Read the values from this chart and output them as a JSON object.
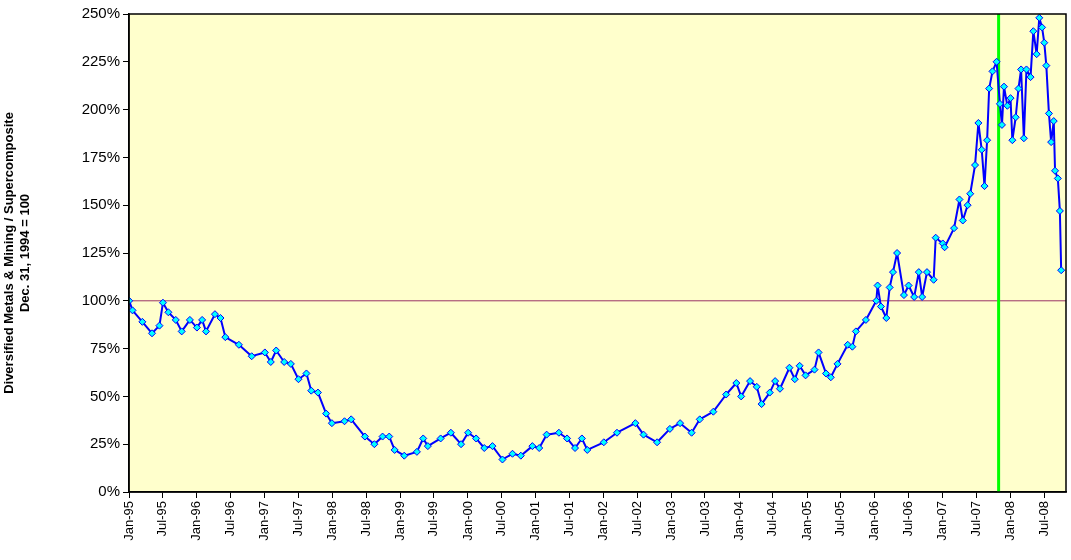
{
  "chart_data": {
    "type": "line",
    "ylabel": "Diversified Metals & Mining / Supercomposite\nDec. 31, 1994 = 100",
    "xlim": [
      "1995-01-01",
      "2008-10-27"
    ],
    "ylim": [
      0,
      250
    ],
    "yticks": [
      {
        "value": 0,
        "label": "0%"
      },
      {
        "value": 25,
        "label": "25%"
      },
      {
        "value": 50,
        "label": "50%"
      },
      {
        "value": 75,
        "label": "75%"
      },
      {
        "value": 100,
        "label": "100%"
      },
      {
        "value": 125,
        "label": "125%"
      },
      {
        "value": 150,
        "label": "150%"
      },
      {
        "value": 175,
        "label": "175%"
      },
      {
        "value": 200,
        "label": "200%"
      },
      {
        "value": 225,
        "label": "225%"
      },
      {
        "value": 250,
        "label": "250%"
      }
    ],
    "xticks": [
      {
        "value": "1995-01",
        "label": "Jan-95"
      },
      {
        "value": "1995-07",
        "label": "Jul-95"
      },
      {
        "value": "1996-01",
        "label": "Jan-96"
      },
      {
        "value": "1996-07",
        "label": "Jul-96"
      },
      {
        "value": "1997-01",
        "label": "Jan-97"
      },
      {
        "value": "1997-07",
        "label": "Jul-97"
      },
      {
        "value": "1998-01",
        "label": "Jan-98"
      },
      {
        "value": "1998-07",
        "label": "Jul-98"
      },
      {
        "value": "1999-01",
        "label": "Jan-99"
      },
      {
        "value": "1999-07",
        "label": "Jul-99"
      },
      {
        "value": "2000-01",
        "label": "Jan-00"
      },
      {
        "value": "2000-07",
        "label": "Jul-00"
      },
      {
        "value": "2001-01",
        "label": "Jan-01"
      },
      {
        "value": "2001-07",
        "label": "Jul-01"
      },
      {
        "value": "2002-01",
        "label": "Jan-02"
      },
      {
        "value": "2002-07",
        "label": "Jul-02"
      },
      {
        "value": "2003-01",
        "label": "Jan-03"
      },
      {
        "value": "2003-07",
        "label": "Jul-03"
      },
      {
        "value": "2004-01",
        "label": "Jan-04"
      },
      {
        "value": "2004-07",
        "label": "Jul-04"
      },
      {
        "value": "2005-01",
        "label": "Jan-05"
      },
      {
        "value": "2005-07",
        "label": "Jul-05"
      },
      {
        "value": "2006-01",
        "label": "Jan-06"
      },
      {
        "value": "2006-07",
        "label": "Jul-06"
      },
      {
        "value": "2007-01",
        "label": "Jan-07"
      },
      {
        "value": "2007-07",
        "label": "Jul-07"
      },
      {
        "value": "2008-01",
        "label": "Jan-08"
      },
      {
        "value": "2008-07",
        "label": "Jul-08"
      }
    ],
    "grid": false,
    "legend": false,
    "marker": "diamond",
    "line_style": "solid",
    "ref_lines": [
      {
        "axis": "y",
        "value": 100,
        "color": "#993366"
      },
      {
        "axis": "x",
        "value": "2007-10-30",
        "color": "#00ff00"
      }
    ],
    "series": [
      {
        "color": "#0000ff",
        "x": [
          "1995-01-02",
          "1995-01-20",
          "1995-03-14",
          "1995-05-05",
          "1995-06-14",
          "1995-07-03",
          "1995-08-01",
          "1995-09-10",
          "1995-10-12",
          "1995-11-25",
          "1996-01-02",
          "1996-01-30",
          "1996-02-20",
          "1996-04-08",
          "1996-05-08",
          "1996-06-03",
          "1996-08-15",
          "1996-10-23",
          "1997-01-02",
          "1997-02-03",
          "1997-03-04",
          "1997-04-16",
          "1997-05-22",
          "1997-07-02",
          "1997-08-14",
          "1997-09-09",
          "1997-10-15",
          "1997-11-28",
          "1997-12-29",
          "1998-03-07",
          "1998-04-12",
          "1998-06-25",
          "1998-08-15",
          "1998-09-28",
          "1998-11-03",
          "1998-12-02",
          "1999-01-23",
          "1999-04-01",
          "1999-05-05",
          "1999-05-30",
          "1999-08-07",
          "1999-10-01",
          "1999-11-25",
          "2000-01-02",
          "2000-02-14",
          "2000-03-29",
          "2000-05-12",
          "2000-07-05",
          "2000-08-28",
          "2000-10-12",
          "2000-12-13",
          "2001-01-19",
          "2001-02-28",
          "2001-05-05",
          "2001-06-18",
          "2001-07-31",
          "2001-09-06",
          "2001-10-05",
          "2002-01-02",
          "2002-03-14",
          "2002-06-21",
          "2002-08-04",
          "2002-10-16",
          "2002-12-24",
          "2003-02-17",
          "2003-04-20",
          "2003-06-03",
          "2003-08-15",
          "2003-10-23",
          "2003-12-17",
          "2004-01-12",
          "2004-02-29",
          "2004-04-05",
          "2004-05-01",
          "2004-06-14",
          "2004-07-13",
          "2004-08-08",
          "2004-09-28",
          "2004-10-27",
          "2004-11-22",
          "2004-12-24",
          "2005-02-10",
          "2005-03-04",
          "2005-04-13",
          "2005-05-09",
          "2005-06-14",
          "2005-08-08",
          "2005-09-02",
          "2005-09-21",
          "2005-11-14",
          "2006-01-09",
          "2006-01-16",
          "2006-02-03",
          "2006-03-04",
          "2006-03-22",
          "2006-04-09",
          "2006-05-01",
          "2006-06-07",
          "2006-07-02",
          "2006-08-01",
          "2006-08-26",
          "2006-09-13",
          "2006-10-09",
          "2006-11-14",
          "2006-11-25",
          "2007-01-02",
          "2007-01-12",
          "2007-03-04",
          "2007-04-02",
          "2007-04-20",
          "2007-05-16",
          "2007-05-30",
          "2007-06-25",
          "2007-07-13",
          "2007-07-31",
          "2007-08-15",
          "2007-08-29",
          "2007-09-09",
          "2007-09-27",
          "2007-10-19",
          "2007-11-06",
          "2007-11-17",
          "2007-11-28",
          "2007-12-16",
          "2008-01-02",
          "2008-01-12",
          "2008-01-30",
          "2008-02-14",
          "2008-02-28",
          "2008-03-14",
          "2008-03-28",
          "2008-04-19",
          "2008-05-04",
          "2008-05-22",
          "2008-06-05",
          "2008-06-20",
          "2008-07-02",
          "2008-07-13",
          "2008-07-27",
          "2008-08-08",
          "2008-08-22",
          "2008-08-29",
          "2008-09-13",
          "2008-09-24",
          "2008-10-01"
        ],
        "values": [
          100,
          95,
          89,
          83,
          87,
          99,
          94,
          90,
          84,
          90,
          86,
          90,
          84,
          93,
          91,
          81,
          77,
          71,
          73,
          68,
          74,
          68,
          67,
          59,
          62,
          53,
          52,
          41,
          36,
          37,
          38,
          29,
          25,
          29,
          29,
          22,
          19,
          21,
          28,
          24,
          28,
          31,
          25,
          31,
          28,
          23,
          24,
          17,
          20,
          19,
          24,
          23,
          30,
          31,
          28,
          23,
          28,
          22,
          26,
          31,
          36,
          30,
          26,
          33,
          36,
          31,
          38,
          42,
          51,
          57,
          50,
          58,
          55,
          46,
          52,
          58,
          54,
          65,
          59,
          66,
          61,
          64,
          73,
          62,
          60,
          67,
          77,
          76,
          84,
          90,
          100,
          108,
          97,
          91,
          107,
          115,
          125,
          103,
          108,
          102,
          115,
          102,
          115,
          111,
          133,
          130,
          128,
          138,
          153,
          142,
          150,
          156,
          171,
          193,
          179,
          160,
          184,
          211,
          220,
          225,
          203,
          192,
          212,
          202,
          206,
          184,
          196,
          211,
          221,
          185,
          221,
          217,
          241,
          229,
          248,
          243,
          235,
          223,
          198,
          183,
          194,
          168,
          164,
          147,
          116
        ]
      }
    ]
  }
}
